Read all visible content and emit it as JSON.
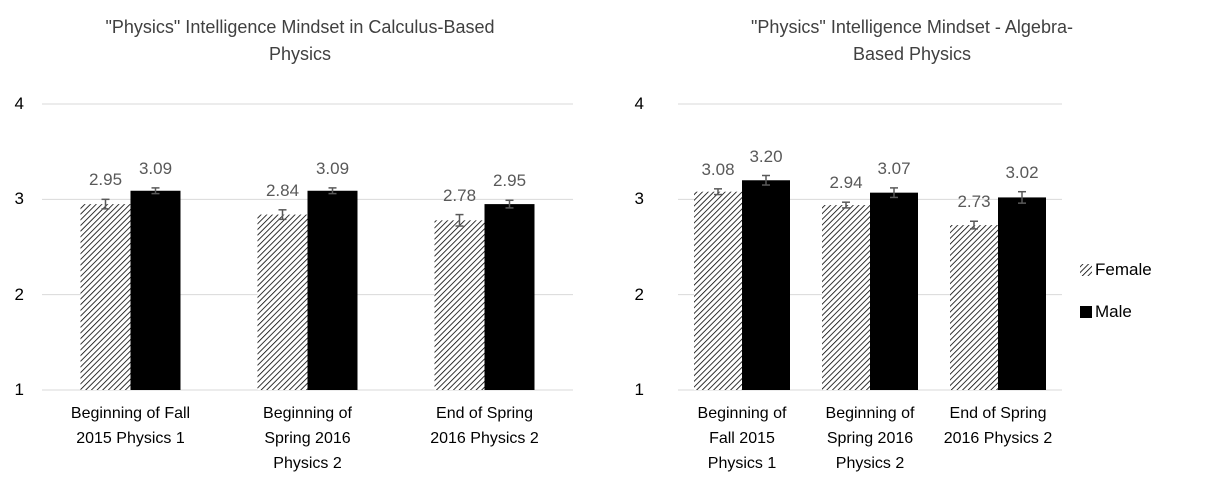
{
  "chart_data": [
    {
      "type": "bar",
      "title": "\"Physics\" Intelligence Mindset in Calculus-Based Physics",
      "categories": [
        "Beginning of Fall 2015 Physics 1",
        "Beginning of Spring 2016 Physics 2",
        "End of Spring 2016 Physics 2"
      ],
      "series": [
        {
          "color": "#000000",
          "pattern": "diagonal",
          "values": [
            2.95,
            2.84,
            2.78
          ],
          "errors": [
            0.05,
            0.05,
            0.06
          ]
        },
        {
          "color": "#000000",
          "values": [
            3.09,
            3.09,
            2.95
          ],
          "errors": [
            0.03,
            0.03,
            0.04
          ]
        }
      ],
      "ylim": [
        1,
        4
      ],
      "yticks": [
        1,
        2,
        3,
        4
      ],
      "grid": true
    },
    {
      "type": "bar",
      "title": "\"Physics\" Intelligence Mindset - Algebra-Based Physics",
      "categories": [
        "Beginning of Fall 2015 Physics 1",
        "Beginning of Spring 2016 Physics 2",
        "End of Spring 2016 Physics 2"
      ],
      "series": [
        {
          "name": "Female",
          "color": "#000000",
          "pattern": "diagonal",
          "values": [
            3.08,
            2.94,
            2.73
          ],
          "errors": [
            0.03,
            0.03,
            0.04
          ]
        },
        {
          "name": "Male",
          "color": "#000000",
          "values": [
            3.2,
            3.07,
            3.02
          ],
          "value_labels": [
            "3.20",
            "3.07",
            "3.02"
          ],
          "errors": [
            0.05,
            0.05,
            0.06
          ]
        }
      ],
      "ylim": [
        1,
        4
      ],
      "yticks": [
        1,
        2,
        3,
        4
      ],
      "grid": true,
      "legend": "right"
    }
  ]
}
